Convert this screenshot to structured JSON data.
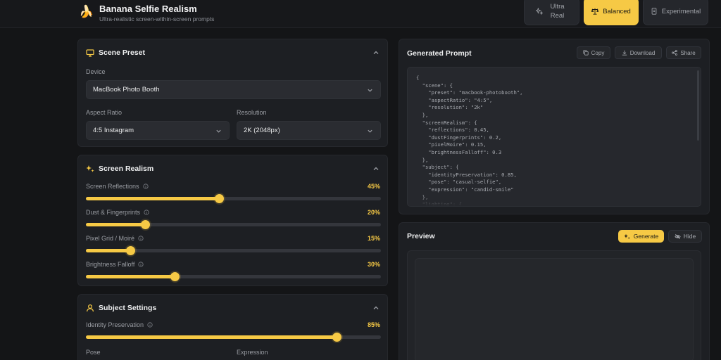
{
  "header": {
    "brand_icon": "🍌",
    "title": "Banana Selfie Realism",
    "subtitle": "Ultra-realistic screen-within-screen prompts",
    "modes": [
      {
        "label": "Ultra Real",
        "icon": "sparkles-icon",
        "active": false
      },
      {
        "label": "Balanced",
        "icon": "scale-icon",
        "active": true
      },
      {
        "label": "Experimental",
        "icon": "flask-icon",
        "active": false
      }
    ]
  },
  "scene_preset": {
    "title": "Scene Preset",
    "device_label": "Device",
    "device_value": "MacBook Photo Booth",
    "aspect_label": "Aspect Ratio",
    "aspect_value": "4:5 Instagram",
    "resolution_label": "Resolution",
    "resolution_value": "2K (2048px)"
  },
  "screen_realism": {
    "title": "Screen Realism",
    "sliders": [
      {
        "label": "Screen Reflections",
        "value": "45%",
        "fraction": 0.45
      },
      {
        "label": "Dust & Fingerprints",
        "value": "20%",
        "fraction": 0.2
      },
      {
        "label": "Pixel Grid / Moiré",
        "value": "15%",
        "fraction": 0.15
      },
      {
        "label": "Brightness Falloff",
        "value": "30%",
        "fraction": 0.3
      }
    ]
  },
  "subject_settings": {
    "title": "Subject Settings",
    "identity_label": "Identity Preservation",
    "identity_value": "85%",
    "identity_fraction": 0.85,
    "pose_label": "Pose",
    "expression_label": "Expression"
  },
  "generated_prompt": {
    "title": "Generated Prompt",
    "copy_label": "Copy",
    "download_label": "Download",
    "share_label": "Share",
    "code": "{\n  \"scene\": {\n    \"preset\": \"macbook-photobooth\",\n    \"aspectRatio\": \"4:5\",\n    \"resolution\": \"2k\"\n  },\n  \"screenRealism\": {\n    \"reflections\": 0.45,\n    \"dustFingerprints\": 0.2,\n    \"pixelMoire\": 0.15,\n    \"brightnessFalloff\": 0.3\n  },\n  \"subject\": {\n    \"identityPreservation\": 0.85,\n    \"pose\": \"casual-selfie\",\n    \"expression\": \"candid-smile\"\n  },\n  \"lighting\": {"
  },
  "preview": {
    "title": "Preview",
    "generate_label": "Generate",
    "hide_label": "Hide"
  },
  "colors": {
    "accent": "#f6c945",
    "background": "#141517",
    "card": "#1d1f23"
  }
}
